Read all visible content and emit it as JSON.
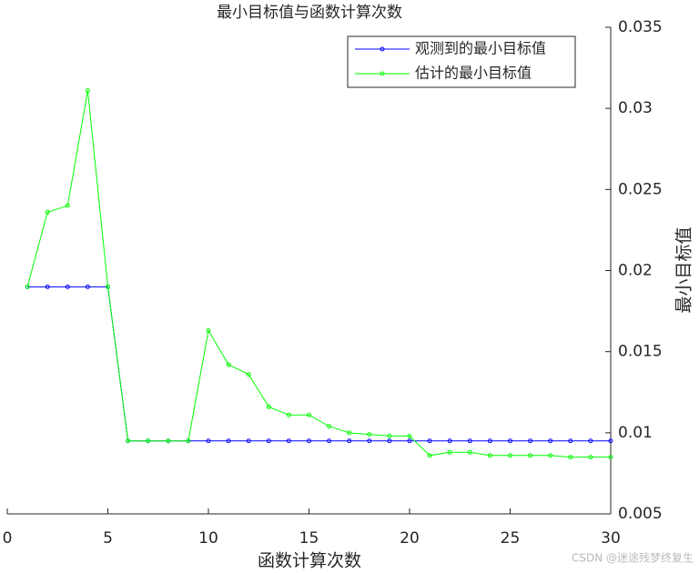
{
  "chart_data": {
    "type": "line",
    "title": "最小目标值与函数计算次数",
    "x_label": "函数计算次数",
    "y_label": "最小目标值",
    "watermark": "CSDN @迷途残梦终复生",
    "x": [
      1,
      2,
      3,
      4,
      5,
      6,
      7,
      8,
      9,
      10,
      11,
      12,
      13,
      14,
      15,
      16,
      17,
      18,
      19,
      20,
      21,
      22,
      23,
      24,
      25,
      26,
      27,
      28,
      29,
      30
    ],
    "series": [
      {
        "name": "观测到的最小目标值",
        "color": "#0000ff",
        "values": [
          0.019,
          0.019,
          0.019,
          0.019,
          0.019,
          0.0095,
          0.0095,
          0.0095,
          0.0095,
          0.0095,
          0.0095,
          0.0095,
          0.0095,
          0.0095,
          0.0095,
          0.0095,
          0.0095,
          0.0095,
          0.0095,
          0.0095,
          0.0095,
          0.0095,
          0.0095,
          0.0095,
          0.0095,
          0.0095,
          0.0095,
          0.0095,
          0.0095,
          0.0095
        ]
      },
      {
        "name": "估计的最小目标值",
        "color": "#00ff00",
        "values": [
          0.019,
          0.0236,
          0.024,
          0.0311,
          0.019,
          0.0095,
          0.0095,
          0.0095,
          0.0095,
          0.0163,
          0.0142,
          0.0136,
          0.0116,
          0.0111,
          0.0111,
          0.0104,
          0.01,
          0.0099,
          0.0098,
          0.0098,
          0.0086,
          0.0088,
          0.0088,
          0.0086,
          0.0086,
          0.0086,
          0.0086,
          0.0085,
          0.0085,
          0.0085
        ]
      }
    ],
    "xlim": [
      0,
      30
    ],
    "xticks": [
      0,
      5,
      10,
      15,
      20,
      25,
      30
    ],
    "ylim": [
      0.005,
      0.035
    ],
    "yticks": [
      0.005,
      0.01,
      0.015,
      0.02,
      0.025,
      0.03,
      0.035
    ],
    "y_axis_side": "right",
    "legend": "top-right",
    "grid": false
  }
}
